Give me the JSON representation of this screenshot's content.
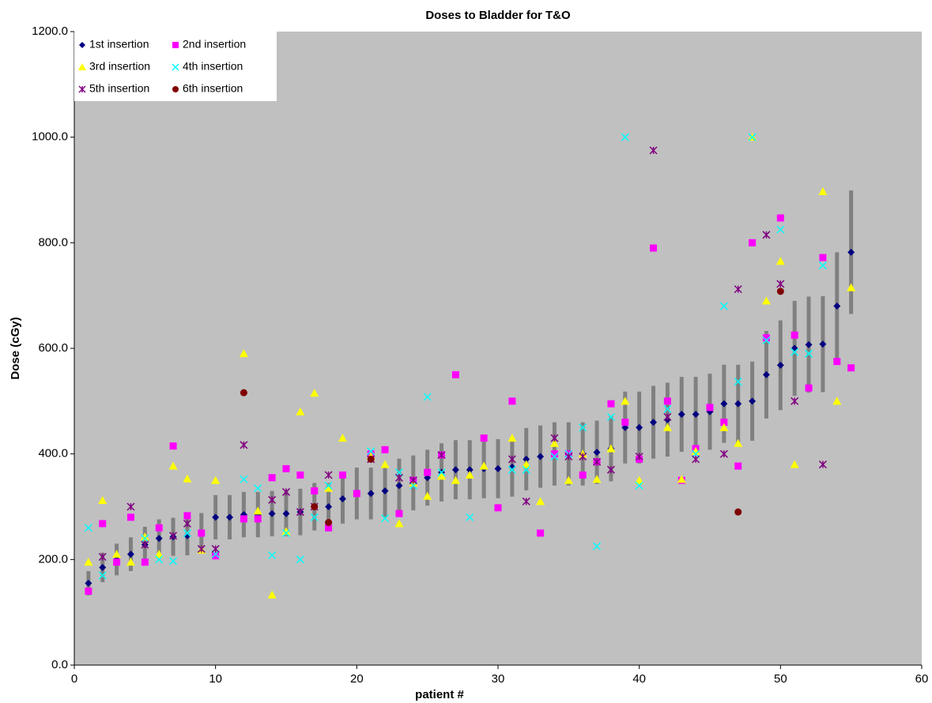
{
  "chart_data": {
    "type": "scatter",
    "title": "Doses to Bladder for T&O",
    "x_label": "patient #",
    "y_label": "Dose (cGy)",
    "xlim": [
      0,
      60
    ],
    "xticks": [
      0,
      10,
      20,
      30,
      40,
      50,
      60
    ],
    "ylim": [
      0,
      1200
    ],
    "yticks": [
      {
        "value": 0,
        "label": "0.0"
      },
      {
        "value": 200,
        "label": "200.0"
      },
      {
        "value": 400,
        "label": "400.0"
      },
      {
        "value": 600,
        "label": "600.0"
      },
      {
        "value": 800,
        "label": "800.0"
      },
      {
        "value": 1000,
        "label": "1000.0"
      },
      {
        "value": 1200,
        "label": "1200.0"
      }
    ],
    "legend": "top-left",
    "error_color": "#808080",
    "plot_color": "#c0c0c0",
    "series": [
      {
        "name": "1st insertion",
        "color": "#000080",
        "marker": "diamond",
        "x": [
          1,
          2,
          3,
          4,
          5,
          6,
          7,
          8,
          9,
          10,
          11,
          12,
          13,
          14,
          15,
          16,
          17,
          18,
          19,
          20,
          21,
          22,
          23,
          24,
          25,
          26,
          27,
          28,
          29,
          30,
          31,
          32,
          33,
          34,
          35,
          36,
          37,
          38,
          39,
          40,
          41,
          42,
          43,
          44,
          45,
          46,
          47,
          48,
          49,
          50,
          51,
          52,
          53,
          54,
          55
        ],
        "values": [
          155,
          185,
          200,
          210,
          228,
          240,
          243,
          245,
          250,
          280,
          280,
          285,
          285,
          287,
          287,
          290,
          300,
          300,
          315,
          325,
          325,
          330,
          340,
          345,
          355,
          365,
          370,
          370,
          372,
          372,
          375,
          390,
          395,
          400,
          400,
          400,
          403,
          410,
          450,
          450,
          460,
          465,
          475,
          475,
          480,
          495,
          495,
          500,
          550,
          568,
          600,
          607,
          608,
          680,
          782
        ],
        "errors": [
          23,
          28,
          30,
          32,
          34,
          36,
          36,
          37,
          38,
          42,
          42,
          43,
          43,
          43,
          43,
          44,
          45,
          45,
          47,
          49,
          49,
          50,
          51,
          52,
          53,
          55,
          56,
          56,
          56,
          56,
          56,
          59,
          59,
          60,
          60,
          60,
          60,
          62,
          68,
          68,
          69,
          70,
          71,
          71,
          72,
          74,
          74,
          75,
          83,
          85,
          90,
          91,
          91,
          102,
          117
        ]
      },
      {
        "name": "2nd insertion",
        "color": "#ff00ff",
        "marker": "square",
        "x": [
          1,
          2,
          3,
          4,
          5,
          6,
          7,
          8,
          9,
          10,
          12,
          13,
          14,
          15,
          16,
          17,
          18,
          19,
          20,
          21,
          22,
          23,
          24,
          25,
          26,
          27,
          29,
          30,
          31,
          33,
          34,
          35,
          36,
          37,
          38,
          39,
          40,
          41,
          42,
          43,
          44,
          45,
          46,
          47,
          48,
          49,
          50,
          51,
          52,
          53,
          54,
          55
        ],
        "values": [
          140,
          268,
          195,
          280,
          195,
          260,
          415,
          283,
          250,
          207,
          277,
          277,
          355,
          372,
          360,
          330,
          260,
          360,
          325,
          400,
          408,
          287,
          350,
          365,
          398,
          550,
          430,
          298,
          500,
          250,
          400,
          400,
          360,
          385,
          495,
          460,
          390,
          790,
          500,
          350,
          410,
          488,
          460,
          377,
          800,
          620,
          847,
          625,
          525,
          772,
          575,
          563
        ]
      },
      {
        "name": "3rd insertion",
        "color": "#ffff00",
        "marker": "triangle",
        "x": [
          1,
          2,
          3,
          4,
          5,
          6,
          7,
          8,
          9,
          10,
          12,
          13,
          14,
          15,
          16,
          17,
          18,
          19,
          21,
          22,
          23,
          24,
          25,
          26,
          27,
          28,
          29,
          31,
          32,
          33,
          34,
          35,
          36,
          37,
          38,
          39,
          40,
          42,
          43,
          44,
          46,
          47,
          48,
          49,
          50,
          51,
          53,
          54,
          55
        ],
        "values": [
          195,
          312,
          210,
          195,
          243,
          210,
          377,
          353,
          218,
          350,
          590,
          292,
          133,
          253,
          480,
          515,
          335,
          430,
          395,
          380,
          268,
          345,
          320,
          358,
          350,
          360,
          377,
          430,
          380,
          310,
          420,
          350,
          400,
          352,
          410,
          500,
          350,
          450,
          352,
          405,
          450,
          420,
          1000,
          690,
          765,
          380,
          897,
          500,
          715
        ]
      },
      {
        "name": "4th insertion",
        "color": "#00ffff",
        "marker": "x",
        "x": [
          1,
          2,
          5,
          6,
          7,
          8,
          10,
          12,
          13,
          14,
          15,
          16,
          17,
          18,
          21,
          22,
          23,
          24,
          25,
          26,
          28,
          31,
          32,
          34,
          35,
          36,
          37,
          38,
          39,
          40,
          42,
          44,
          46,
          47,
          48,
          49,
          50,
          51,
          52,
          53
        ],
        "values": [
          260,
          170,
          240,
          200,
          197,
          250,
          210,
          352,
          335,
          208,
          250,
          200,
          280,
          340,
          405,
          278,
          365,
          340,
          508,
          365,
          280,
          370,
          370,
          395,
          400,
          450,
          225,
          470,
          1000,
          340,
          485,
          400,
          680,
          537,
          1000,
          615,
          825,
          593,
          590,
          757
        ]
      },
      {
        "name": "5th insertion",
        "color": "#800080",
        "marker": "asterisk",
        "x": [
          2,
          4,
          5,
          7,
          8,
          9,
          10,
          12,
          14,
          15,
          16,
          17,
          18,
          21,
          23,
          24,
          26,
          31,
          32,
          34,
          35,
          36,
          37,
          38,
          40,
          41,
          42,
          44,
          46,
          47,
          49,
          50,
          51,
          53
        ],
        "values": [
          205,
          300,
          228,
          245,
          268,
          220,
          220,
          417,
          313,
          328,
          290,
          300,
          360,
          390,
          355,
          350,
          398,
          390,
          310,
          430,
          395,
          395,
          385,
          370,
          395,
          975,
          470,
          390,
          400,
          712,
          815,
          722,
          500,
          380
        ]
      },
      {
        "name": "6th insertion",
        "color": "#800000",
        "marker": "circle",
        "x": [
          12,
          17,
          18,
          21,
          47,
          50
        ],
        "values": [
          516,
          300,
          270,
          390,
          290,
          708
        ]
      }
    ]
  }
}
